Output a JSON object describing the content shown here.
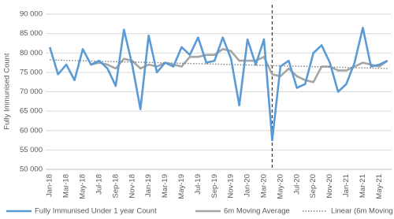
{
  "chart_data": {
    "type": "line",
    "y_label": "Fully Immunised Count",
    "categories": [
      "Jan-18",
      null,
      "Mar-18",
      null,
      "May-18",
      null,
      "Jul-18",
      null,
      "Sep-18",
      null,
      "Nov-18",
      null,
      "Jan-19",
      null,
      "Mar-19",
      null,
      "May-19",
      null,
      "Jul-19",
      null,
      "Sep-19",
      null,
      "Nov-19",
      null,
      "Jan-20",
      null,
      "Mar-20",
      null,
      "May-20",
      null,
      "Jul-20",
      null,
      "Sep-20",
      null,
      "Nov-20",
      null,
      "Jan-21",
      null,
      "Mar-21",
      null,
      "May-21",
      null
    ],
    "series": [
      {
        "name": "Fully Immunised Under 1 year Count",
        "color": "#5b9bd5",
        "style": "solid",
        "values": [
          81500,
          74500,
          77000,
          73000,
          81000,
          77000,
          78000,
          76000,
          71500,
          86000,
          77000,
          65500,
          84500,
          75000,
          77500,
          76500,
          81500,
          79500,
          84000,
          77500,
          78000,
          84000,
          78500,
          66500,
          83500,
          77000,
          83500,
          57500,
          76500,
          78000,
          71000,
          72000,
          80000,
          82000,
          77500,
          70000,
          72000,
          77500,
          86500,
          76500,
          77000,
          78000
        ]
      },
      {
        "name": "6m Moving Average",
        "color": "#a5a5a5",
        "style": "solid",
        "values": [
          null,
          null,
          null,
          null,
          null,
          77000,
          77500,
          77000,
          76000,
          78500,
          78000,
          76000,
          77000,
          76500,
          77500,
          77000,
          76500,
          79000,
          79000,
          79500,
          79500,
          81000,
          80500,
          78000,
          78000,
          78000,
          79000,
          74500,
          74000,
          76000,
          74000,
          73000,
          72500,
          76500,
          76500,
          75500,
          75500,
          76500,
          77500,
          77000,
          76500,
          78000
        ]
      },
      {
        "name": "Linear (6m Moving Average)",
        "color": "#7f7f7f",
        "style": "dotted",
        "values": [
          78200,
          78150,
          78090,
          78040,
          77990,
          77930,
          77880,
          77820,
          77770,
          77720,
          77660,
          77610,
          77560,
          77500,
          77450,
          77400,
          77340,
          77290,
          77230,
          77180,
          77130,
          77070,
          77020,
          76970,
          76910,
          76860,
          76800,
          76750,
          76700,
          76640,
          76590,
          76540,
          76480,
          76430,
          76370,
          76320,
          76270,
          76210,
          76160,
          76110,
          76050,
          76000
        ]
      }
    ],
    "vline_index": 27,
    "ylim": [
      50000,
      90000
    ],
    "yticks": [
      {
        "value": 50000,
        "label": "50 000"
      },
      {
        "value": 55000,
        "label": "55 000"
      },
      {
        "value": 60000,
        "label": "60 000"
      },
      {
        "value": 65000,
        "label": "65 000"
      },
      {
        "value": 70000,
        "label": "70 000"
      },
      {
        "value": 75000,
        "label": "75 000"
      },
      {
        "value": 80000,
        "label": "80 000"
      },
      {
        "value": 85000,
        "label": "85 000"
      },
      {
        "value": 90000,
        "label": "90 000"
      }
    ],
    "grid": true,
    "legend": "bottom"
  }
}
